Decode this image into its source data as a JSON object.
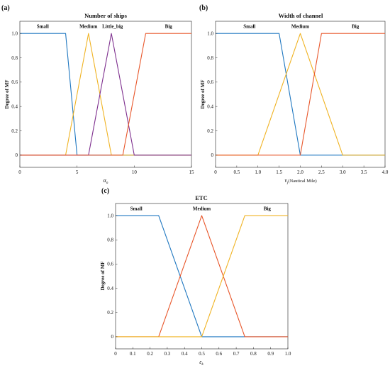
{
  "colors": {
    "blue": "#1f77c0",
    "orange": "#e8562a",
    "yellow": "#f0b323",
    "purple": "#7e2f8e"
  },
  "chart_data": [
    {
      "panel": "(a)",
      "title": "Number of ships",
      "type": "line",
      "ylabel": "Degree of MF",
      "xlabel": "α",
      "xlabel_sub": "n",
      "xlim": [
        0,
        15
      ],
      "ylim": [
        -0.1,
        1.1
      ],
      "xticks": [
        "0",
        "5",
        "10",
        "15"
      ],
      "xtick_values": [
        0,
        5,
        10,
        15
      ],
      "yticks": [
        "0",
        "0.2",
        "0.4",
        "0.6",
        "0.8",
        "1.0"
      ],
      "ytick_values": [
        0,
        0.2,
        0.4,
        0.6,
        0.8,
        1.0
      ],
      "series": [
        {
          "name": "Small",
          "color": "#1f77c0",
          "x": [
            0,
            4,
            5,
            15
          ],
          "y": [
            1,
            1,
            0,
            0
          ]
        },
        {
          "name": "Medium",
          "color": "#f0b323",
          "x": [
            0,
            4,
            6,
            8,
            15
          ],
          "y": [
            0,
            0,
            1,
            0,
            0
          ]
        },
        {
          "name": "Little_big",
          "color": "#7e2f8e",
          "x": [
            0,
            6,
            8,
            10,
            15
          ],
          "y": [
            0,
            0,
            1,
            0,
            0
          ]
        },
        {
          "name": "Big",
          "color": "#e8562a",
          "x": [
            0,
            9,
            11,
            15
          ],
          "y": [
            0,
            0,
            1,
            1
          ]
        }
      ],
      "labels": [
        {
          "text": "Small",
          "x": 2,
          "y": 1.06
        },
        {
          "text": "Medium",
          "x": 6,
          "y": 1.06
        },
        {
          "text": "Little_big",
          "x": 8.1,
          "y": 1.06
        },
        {
          "text": "Big",
          "x": 13,
          "y": 1.06
        }
      ]
    },
    {
      "panel": "(b)",
      "title": "Width of channel",
      "type": "line",
      "ylabel": "Degree of MF",
      "xlabel": "v",
      "xlabel_sub": "j",
      "xlabel_rest": "(Nautical Mile)",
      "xlim": [
        0,
        4
      ],
      "ylim": [
        -0.1,
        1.1
      ],
      "xticks": [
        "0",
        "0.5",
        "1.0",
        "1.5",
        "2.0",
        "2.5",
        "3.0",
        "3.5",
        "4.0"
      ],
      "xtick_values": [
        0,
        0.5,
        1,
        1.5,
        2,
        2.5,
        3,
        3.5,
        4
      ],
      "yticks": [
        "0",
        "0.2",
        "0.4",
        "0.6",
        "0.8",
        "1.0"
      ],
      "ytick_values": [
        0,
        0.2,
        0.4,
        0.6,
        0.8,
        1.0
      ],
      "series": [
        {
          "name": "Small",
          "color": "#1f77c0",
          "x": [
            0,
            1.5,
            2,
            4
          ],
          "y": [
            1,
            1,
            0,
            0
          ]
        },
        {
          "name": "Medium",
          "color": "#f0b323",
          "x": [
            0,
            1,
            2,
            3,
            4
          ],
          "y": [
            0,
            0,
            1,
            0,
            0
          ]
        },
        {
          "name": "Big",
          "color": "#e8562a",
          "x": [
            0,
            2,
            2.5,
            4
          ],
          "y": [
            0,
            0,
            1,
            1
          ]
        }
      ],
      "labels": [
        {
          "text": "Small",
          "x": 0.8,
          "y": 1.06
        },
        {
          "text": "Medium",
          "x": 2.0,
          "y": 1.06
        },
        {
          "text": "Big",
          "x": 3.3,
          "y": 1.06
        }
      ]
    },
    {
      "panel": "(c)",
      "title": "ETC",
      "type": "line",
      "ylabel": "Degree of MF",
      "xlabel": "ε",
      "xlabel_sub": "k",
      "xlim": [
        0,
        1
      ],
      "ylim": [
        -0.1,
        1.1
      ],
      "xticks": [
        "0",
        "0.1",
        "0.2",
        "0.3",
        "0.4",
        "0.5",
        "0.6",
        "0.7",
        "0.8",
        "0.9",
        "1.0"
      ],
      "xtick_values": [
        0,
        0.1,
        0.2,
        0.3,
        0.4,
        0.5,
        0.6,
        0.7,
        0.8,
        0.9,
        1.0
      ],
      "yticks": [
        "0",
        "0.2",
        "0.4",
        "0.6",
        "0.8",
        "1.0"
      ],
      "ytick_values": [
        0,
        0.2,
        0.4,
        0.6,
        0.8,
        1.0
      ],
      "series": [
        {
          "name": "Small",
          "color": "#1f77c0",
          "x": [
            0,
            0.25,
            0.5,
            1
          ],
          "y": [
            1,
            1,
            0,
            0
          ]
        },
        {
          "name": "Medium",
          "color": "#e8562a",
          "x": [
            0,
            0.25,
            0.5,
            0.75,
            1
          ],
          "y": [
            0,
            0,
            1,
            0,
            0
          ]
        },
        {
          "name": "Big",
          "color": "#f0b323",
          "x": [
            0,
            0.5,
            0.75,
            1
          ],
          "y": [
            0,
            0,
            1,
            1
          ]
        }
      ],
      "labels": [
        {
          "text": "Small",
          "x": 0.12,
          "y": 1.06
        },
        {
          "text": "Medium",
          "x": 0.5,
          "y": 1.06
        },
        {
          "text": "Big",
          "x": 0.88,
          "y": 1.06
        }
      ]
    }
  ]
}
